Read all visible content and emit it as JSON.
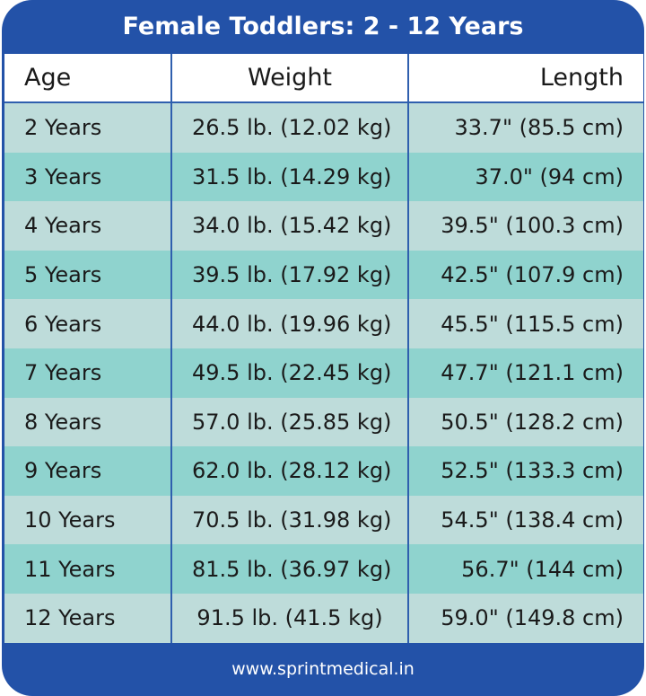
{
  "title": "Female Toddlers: 2 - 12 Years",
  "headers": {
    "age": "Age",
    "weight": "Weight",
    "length": "Length"
  },
  "rows": [
    {
      "age": "2 Years",
      "weight": "26.5 lb. (12.02 kg)",
      "length": "33.7\" (85.5 cm)"
    },
    {
      "age": "3 Years",
      "weight": "31.5 lb. (14.29 kg)",
      "length": "37.0\" (94 cm)"
    },
    {
      "age": "4 Years",
      "weight": "34.0 lb. (15.42 kg)",
      "length": "39.5\" (100.3 cm)"
    },
    {
      "age": "5 Years",
      "weight": "39.5 lb. (17.92 kg)",
      "length": "42.5\" (107.9 cm)"
    },
    {
      "age": "6 Years",
      "weight": "44.0 lb. (19.96 kg)",
      "length": "45.5\" (115.5 cm)"
    },
    {
      "age": "7 Years",
      "weight": "49.5 lb. (22.45 kg)",
      "length": "47.7\" (121.1 cm)"
    },
    {
      "age": "8 Years",
      "weight": "57.0 lb. (25.85 kg)",
      "length": "50.5\" (128.2 cm)"
    },
    {
      "age": "9 Years",
      "weight": "62.0 lb. (28.12 kg)",
      "length": "52.5\" (133.3 cm)"
    },
    {
      "age": "10 Years",
      "weight": "70.5 lb. (31.98 kg)",
      "length": "54.5\" (138.4 cm)"
    },
    {
      "age": "11 Years",
      "weight": "81.5 lb. (36.97 kg)",
      "length": "56.7\" (144 cm)"
    },
    {
      "age": "12 Years",
      "weight": "91.5 lb. (41.5 kg)",
      "length": "59.0\" (149.8 cm)"
    }
  ],
  "footer": "www.sprintmedical.in",
  "colors": {
    "brand": "#2352a8",
    "row_light": "#bedcda",
    "row_teal": "#8fd3ce"
  }
}
